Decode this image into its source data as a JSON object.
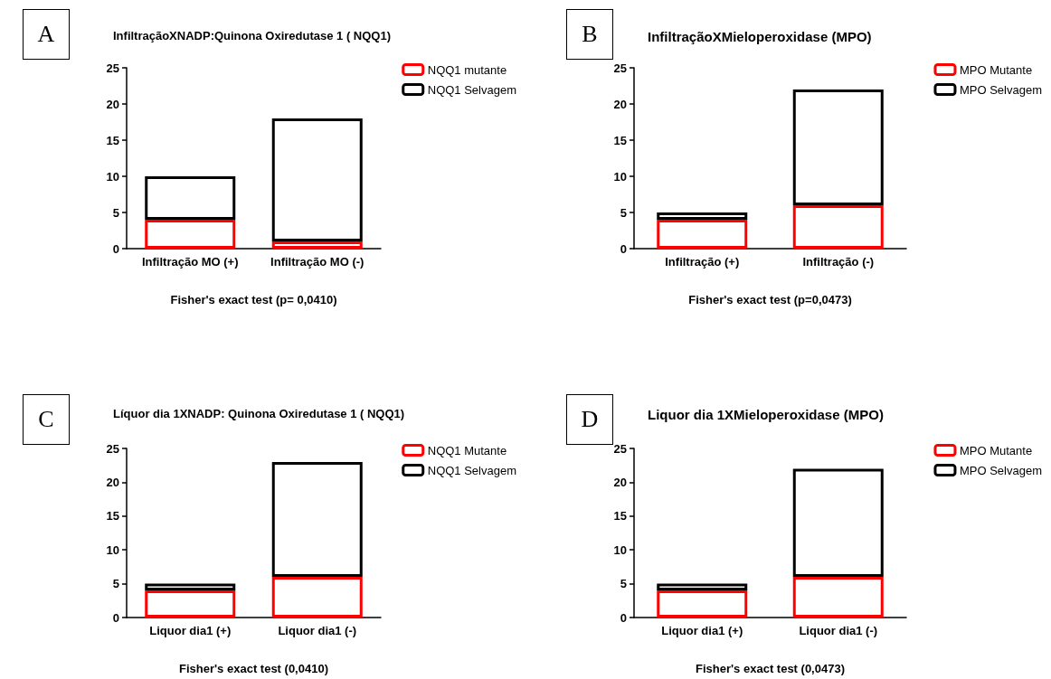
{
  "chart_data": [
    {
      "type": "bar",
      "title": "InfiltraçãoXNADP:Quinona Oxiredutase 1 ( NQQ1)",
      "xlabel": "Fisher's exact test (p= 0,0410)",
      "annotations": [
        "A"
      ],
      "categories": [
        "Infiltração MO (+)",
        "Infiltração MO (-)"
      ],
      "stacked": true,
      "ylim": [
        0,
        25
      ],
      "yticks": [
        0,
        5,
        10,
        15,
        20,
        25
      ],
      "legend": "right",
      "grid": false,
      "series": [
        {
          "name": "NQQ1 mutante",
          "color": "#ff0000",
          "values": [
            4,
            1
          ]
        },
        {
          "name": "NQQ1 Selvagem",
          "color": "#000000",
          "values": [
            6,
            17
          ]
        }
      ]
    },
    {
      "type": "bar",
      "title": "InfiltraçãoXMieloperoxidase (MPO)",
      "xlabel": "Fisher's exact test (p=0,0473)",
      "annotations": [
        "B"
      ],
      "categories": [
        "Infiltração (+)",
        "Infiltração (-)"
      ],
      "stacked": true,
      "ylim": [
        0,
        25
      ],
      "yticks": [
        0,
        5,
        10,
        15,
        20,
        25
      ],
      "legend": "right",
      "grid": false,
      "series": [
        {
          "name": "MPO Mutante",
          "color": "#ff0000",
          "values": [
            4,
            6
          ]
        },
        {
          "name": "MPO Selvagem",
          "color": "#000000",
          "values": [
            1,
            16
          ]
        }
      ]
    },
    {
      "type": "bar",
      "title": "Líquor dia 1XNADP: Quinona Oxiredutase 1 ( NQQ1)",
      "xlabel": "Fisher's exact test (0,0410)",
      "annotations": [
        "C"
      ],
      "categories": [
        "Liquor dia1 (+)",
        "Liquor dia1 (-)"
      ],
      "stacked": true,
      "ylim": [
        0,
        25
      ],
      "yticks": [
        0,
        5,
        10,
        15,
        20,
        25
      ],
      "legend": "right",
      "grid": false,
      "series": [
        {
          "name": "NQQ1 Mutante",
          "color": "#ff0000",
          "values": [
            4,
            6
          ]
        },
        {
          "name": "NQQ1 Selvagem",
          "color": "#000000",
          "values": [
            1,
            17
          ]
        }
      ]
    },
    {
      "type": "bar",
      "title": "Liquor dia 1XMieloperoxidase (MPO)",
      "xlabel": "Fisher's exact test (0,0473)",
      "annotations": [
        "D"
      ],
      "categories": [
        "Liquor dia1 (+)",
        "Liquor dia1 (-)"
      ],
      "stacked": true,
      "ylim": [
        0,
        25
      ],
      "yticks": [
        0,
        5,
        10,
        15,
        20,
        25
      ],
      "legend": "right",
      "grid": false,
      "series": [
        {
          "name": "MPO Mutante",
          "color": "#ff0000",
          "values": [
            4,
            6
          ]
        },
        {
          "name": "MPO Selvagem",
          "color": "#000000",
          "values": [
            1,
            16
          ]
        }
      ]
    }
  ]
}
